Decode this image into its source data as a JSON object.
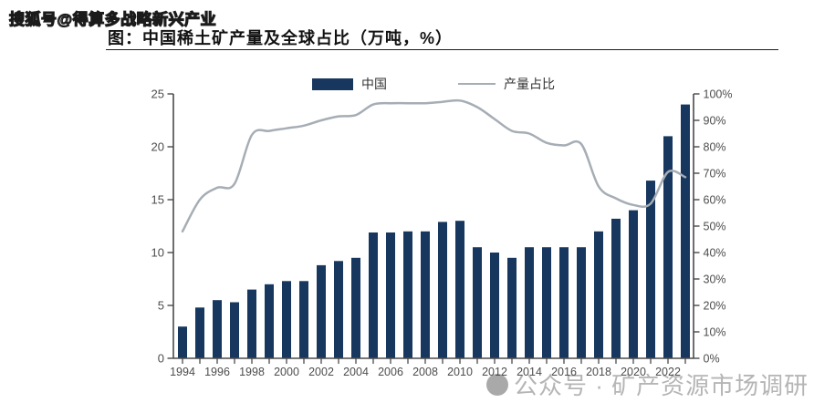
{
  "page": {
    "watermark_top": "搜狐号@得算多战略新兴产业",
    "watermark_bottom": "公众号 · 矿产资源市场调研",
    "title": "图：中国稀土矿产量及全球占比（万吨，%）"
  },
  "legend": {
    "bar_label": "中国",
    "line_label": "产量占比"
  },
  "colors": {
    "bar": "#17375e",
    "line": "#a6adb5",
    "axis": "#4a4a4a",
    "tick_label": "#4d4d4d"
  },
  "chart_data": {
    "type": "bar",
    "subtype": "bar+line combo, dual axis",
    "title": "图：中国稀土矿产量及全球占比（万吨，%）",
    "categories": [
      "1994",
      "1995",
      "1996",
      "1997",
      "1998",
      "1999",
      "2000",
      "2001",
      "2002",
      "2003",
      "2004",
      "2005",
      "2006",
      "2007",
      "2008",
      "2009",
      "2010",
      "2011",
      "2012",
      "2013",
      "2014",
      "2015",
      "2016",
      "2017",
      "2018",
      "2019",
      "2020",
      "2021",
      "2022",
      "2023"
    ],
    "series": [
      {
        "name": "中国",
        "type": "bar",
        "axis": "left",
        "unit": "万吨",
        "values": [
          3.0,
          4.8,
          5.5,
          5.3,
          6.5,
          7.0,
          7.3,
          7.3,
          8.8,
          9.2,
          9.5,
          11.9,
          11.9,
          12.0,
          12.0,
          12.9,
          13.0,
          10.5,
          10.0,
          9.5,
          10.5,
          10.5,
          10.5,
          10.5,
          12.0,
          13.2,
          14.0,
          16.8,
          21.0,
          24.0
        ]
      },
      {
        "name": "产量占比",
        "type": "line",
        "axis": "right",
        "unit": "%",
        "values": [
          48,
          60,
          64.5,
          66,
          84.5,
          86,
          87,
          88,
          90,
          91.5,
          92,
          96,
          96.5,
          96.5,
          96.5,
          97,
          97.5,
          95,
          90.5,
          86,
          85,
          81.5,
          80.5,
          81,
          65,
          60.5,
          58,
          58.5,
          70.5,
          68.5
        ]
      }
    ],
    "left_axis": {
      "min": 0,
      "max": 25,
      "ticks": [
        0,
        5,
        10,
        15,
        20,
        25
      ]
    },
    "right_axis": {
      "min": 0,
      "max": 100,
      "tick_step": 10,
      "tick_labels": [
        "0%",
        "10%",
        "20%",
        "30%",
        "40%",
        "50%",
        "60%",
        "70%",
        "80%",
        "90%",
        "100%"
      ]
    },
    "x_tick_labels": [
      "1994",
      "1996",
      "1998",
      "2000",
      "2002",
      "2004",
      "2006",
      "2008",
      "2010",
      "2012",
      "2014",
      "2016",
      "2018",
      "2020",
      "2022"
    ],
    "grid": false,
    "legend_position": "top-center"
  }
}
